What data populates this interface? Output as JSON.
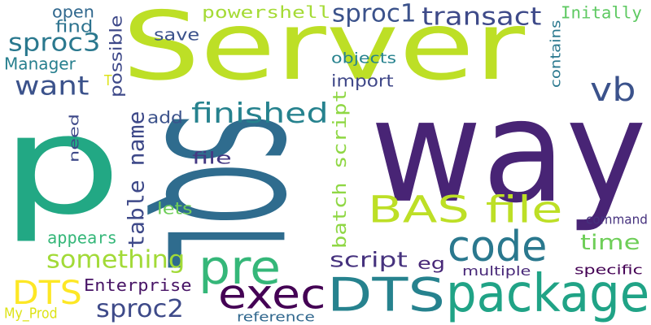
{
  "words": [
    {
      "text": "p",
      "color": "#22a884",
      "mono": false,
      "rot": 0
    },
    {
      "text": "Server",
      "color": "#bddf26",
      "mono": false,
      "rot": 0
    },
    {
      "text": "SQL",
      "color": "#2f6c8e",
      "mono": false,
      "rot": 90
    },
    {
      "text": "way",
      "color": "#482475",
      "mono": false,
      "rot": 0
    },
    {
      "text": "package",
      "color": "#20a386",
      "mono": false,
      "rot": 0
    },
    {
      "text": "DTS",
      "color": "#26828e",
      "mono": false,
      "rot": 0
    },
    {
      "text": "exec",
      "color": "#440154",
      "mono": false,
      "rot": 0
    },
    {
      "text": "code",
      "color": "#2a788e",
      "mono": false,
      "rot": 0
    },
    {
      "text": "pre",
      "color": "#35b779",
      "mono": false,
      "rot": 0
    },
    {
      "text": "BAS file",
      "color": "#bddf26",
      "mono": false,
      "rot": 0
    },
    {
      "text": "DTS",
      "color": "#fde725",
      "mono": false,
      "rot": 0
    },
    {
      "text": "vb",
      "color": "#3b528b",
      "mono": false,
      "rot": 0
    },
    {
      "text": "want",
      "color": "#3b528b",
      "mono": false,
      "rot": 0
    },
    {
      "text": "finished",
      "color": "#26828e",
      "mono": false,
      "rot": 0
    },
    {
      "text": "something",
      "color": "#a2da37",
      "mono": false,
      "rot": 0
    },
    {
      "text": "transact",
      "color": "#3e4a89",
      "mono": false,
      "rot": 0
    },
    {
      "text": "sproc1",
      "color": "#3b528b",
      "mono": false,
      "rot": 0
    },
    {
      "text": "sproc3",
      "color": "#2a788e",
      "mono": false,
      "rot": 0
    },
    {
      "text": "sproc2",
      "color": "#3e4a89",
      "mono": false,
      "rot": 0
    },
    {
      "text": "powershell",
      "color": "#a5db36",
      "mono": true,
      "rot": 0
    },
    {
      "text": "time",
      "color": "#6ece58",
      "mono": false,
      "rot": 0
    },
    {
      "text": "script",
      "color": "#46327e",
      "mono": false,
      "rot": 0
    },
    {
      "text": "eg",
      "color": "#482878",
      "mono": false,
      "rot": 0
    },
    {
      "text": "Enterprise",
      "color": "#471365",
      "mono": true,
      "rot": 0
    },
    {
      "text": "batch script",
      "color": "#8fd744",
      "mono": true,
      "rot": -90
    },
    {
      "text": "table name",
      "color": "#3e4989",
      "mono": true,
      "rot": -90
    },
    {
      "text": "import",
      "color": "#3f4788",
      "mono": false,
      "rot": 0
    },
    {
      "text": "appears",
      "color": "#35b779",
      "mono": true,
      "rot": 0
    },
    {
      "text": "Manager",
      "color": "#277f8e",
      "mono": false,
      "rot": 0
    },
    {
      "text": "open",
      "color": "#31688e",
      "mono": false,
      "rot": 0
    },
    {
      "text": "find",
      "color": "#2c728e",
      "mono": false,
      "rot": 0
    },
    {
      "text": "save",
      "color": "#3b528b",
      "mono": false,
      "rot": 0
    },
    {
      "text": "add",
      "color": "#3b528b",
      "mono": false,
      "rot": 0
    },
    {
      "text": "file",
      "color": "#443983",
      "mono": false,
      "rot": 0
    },
    {
      "text": "lets",
      "color": "#6ece58",
      "mono": false,
      "rot": 0
    },
    {
      "text": "Initally",
      "color": "#5ec962",
      "mono": true,
      "rot": 0
    },
    {
      "text": "possible",
      "color": "#3e4989",
      "mono": false,
      "rot": -90
    },
    {
      "text": "contains",
      "color": "#2a788e",
      "mono": false,
      "rot": -90
    },
    {
      "text": "need",
      "color": "#3e4989",
      "mono": false,
      "rot": -90
    },
    {
      "text": "objects",
      "color": "#26828e",
      "mono": false,
      "rot": 0
    },
    {
      "text": "command",
      "color": "#46327e",
      "mono": false,
      "rot": 0
    },
    {
      "text": "multiple",
      "color": "#482878",
      "mono": false,
      "rot": 0
    },
    {
      "text": "specific",
      "color": "#440154",
      "mono": false,
      "rot": 0
    },
    {
      "text": "reference",
      "color": "#31688e",
      "mono": false,
      "rot": 0
    },
    {
      "text": "My_Prod",
      "color": "#dde318",
      "mono": false,
      "rot": 0
    },
    {
      "text": "T",
      "color": "#dde318",
      "mono": false,
      "rot": 0
    }
  ]
}
